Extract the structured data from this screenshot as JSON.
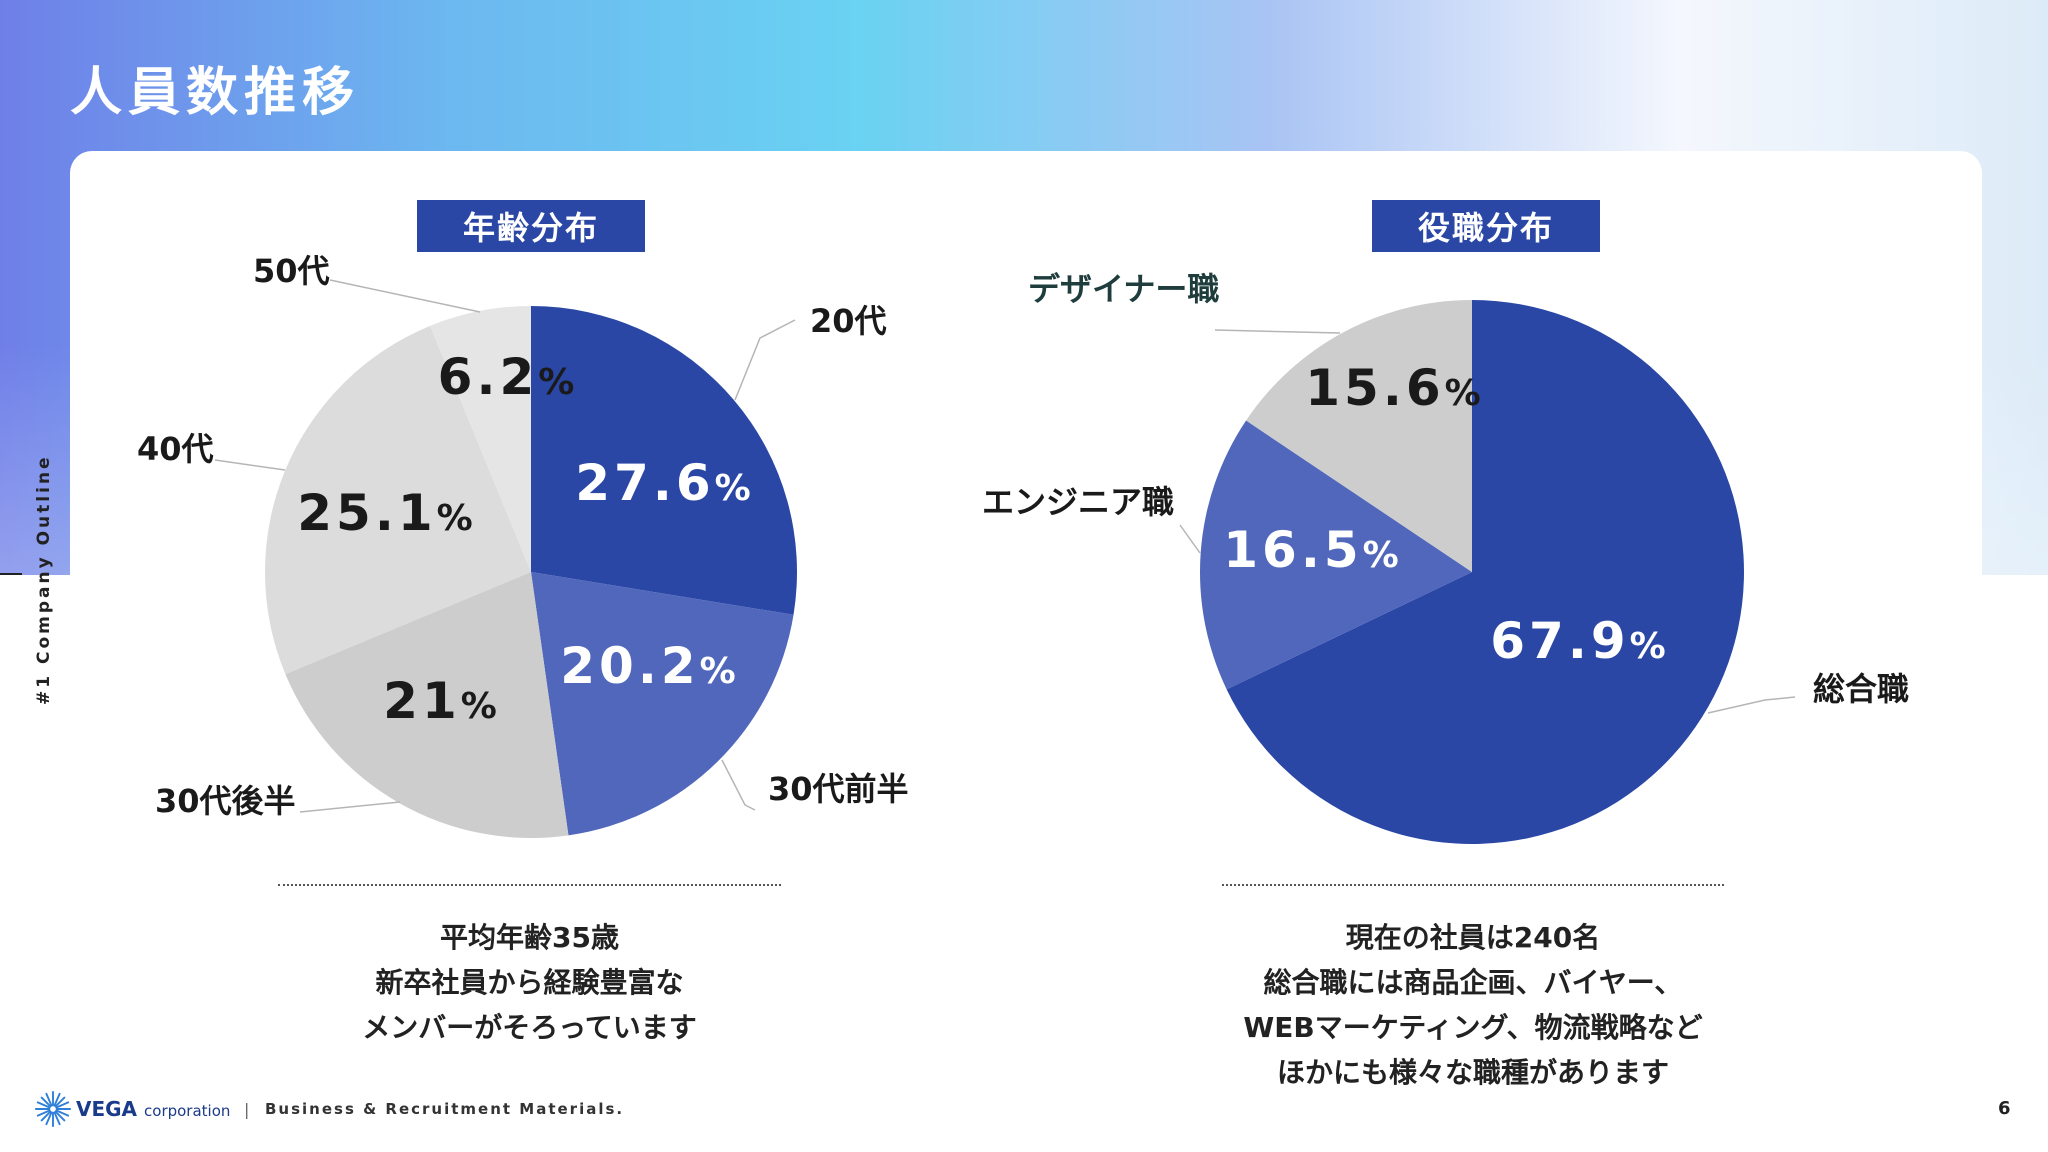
{
  "page_title": "人員数推移",
  "side_label": "#1 Company Outline",
  "colors": {
    "primary": "#2b47a6",
    "mid": "#5067bb",
    "gray1": "#cdcdcd",
    "gray2": "#dcdcdc",
    "gray3": "#e5e5e5"
  },
  "chart_data": [
    {
      "type": "pie",
      "title": "年齢分布",
      "slices": [
        {
          "label": "20代",
          "value": 27.6,
          "display": "27.6%",
          "color": "#2b47a6"
        },
        {
          "label": "30代前半",
          "value": 20.2,
          "display": "20.2%",
          "color": "#5067bb"
        },
        {
          "label": "30代後半",
          "value": 21,
          "display": "21%",
          "color": "#cdcdcd"
        },
        {
          "label": "40代",
          "value": 25.1,
          "display": "25.1%",
          "color": "#dcdcdc"
        },
        {
          "label": "50代",
          "value": 6.2,
          "display": "6.2%",
          "color": "#e5e5e5"
        }
      ]
    },
    {
      "type": "pie",
      "title": "役職分布",
      "slices": [
        {
          "label": "総合職",
          "value": 67.9,
          "display": "67.9%",
          "color": "#2b47a6"
        },
        {
          "label": "エンジニア職",
          "value": 16.5,
          "display": "16.5%",
          "color": "#5067bb"
        },
        {
          "label": "デザイナー職",
          "value": 15.6,
          "display": "15.6%",
          "color": "#cdcdcd"
        }
      ]
    }
  ],
  "captions": {
    "age": [
      "平均年齢35歳",
      "新卒社員から経験豊富な",
      "メンバーがそろっています"
    ],
    "role": [
      "現在の社員は240名",
      "総合職には商品企画、バイヤー、",
      "WEBマーケティング、物流戦略など",
      "ほかにも様々な職種があります"
    ]
  },
  "footer": {
    "logo_main": "VEGA",
    "logo_sub": "corporation",
    "separator": "|",
    "subtitle": "Business & Recruitment Materials.",
    "page_number": "6"
  }
}
